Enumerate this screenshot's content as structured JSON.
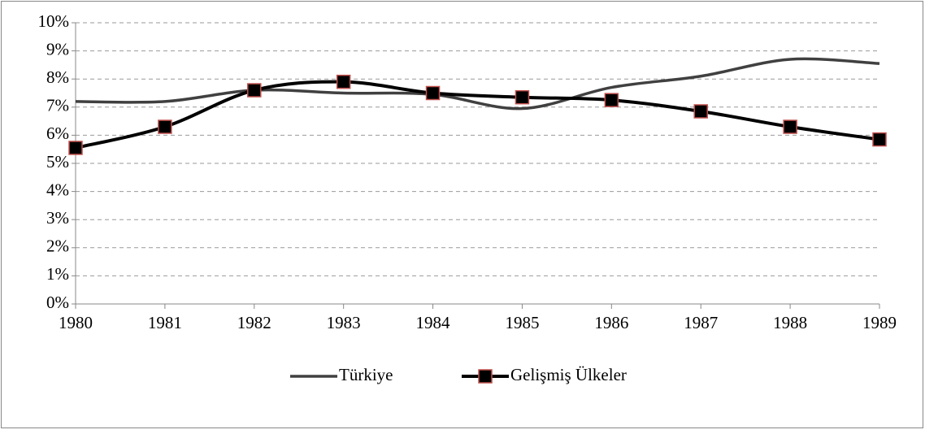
{
  "chart_data": {
    "type": "line",
    "categories": [
      "1980",
      "1981",
      "1982",
      "1983",
      "1984",
      "1985",
      "1986",
      "1987",
      "1988",
      "1989"
    ],
    "series": [
      {
        "name": "Türkiye",
        "color": "#404040",
        "values": [
          7.2,
          7.2,
          7.6,
          7.5,
          7.45,
          6.95,
          7.7,
          8.1,
          8.7,
          8.55
        ]
      },
      {
        "name": "Gelişmiş Ülkeler",
        "color": "#000000",
        "marker_edge": "#c0504d",
        "values": [
          5.55,
          6.3,
          7.6,
          7.9,
          7.5,
          7.35,
          7.25,
          6.85,
          6.3,
          5.85
        ]
      }
    ],
    "ylim": [
      0,
      10
    ],
    "yticks": [
      {
        "value": 0,
        "label": "0%"
      },
      {
        "value": 1,
        "label": "1%"
      },
      {
        "value": 2,
        "label": "2%"
      },
      {
        "value": 3,
        "label": "3%"
      },
      {
        "value": 4,
        "label": "4%"
      },
      {
        "value": 5,
        "label": "5%"
      },
      {
        "value": 6,
        "label": "6%"
      },
      {
        "value": 7,
        "label": "7%"
      },
      {
        "value": 8,
        "label": "8%"
      },
      {
        "value": 9,
        "label": "9%"
      },
      {
        "value": 10,
        "label": "10%"
      }
    ],
    "grid": true,
    "legend": "bottom",
    "smooth": true
  }
}
